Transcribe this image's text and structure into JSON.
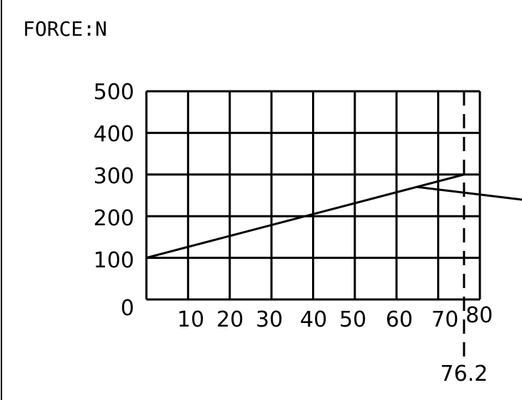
{
  "chart_data": {
    "type": "line",
    "title": "FORCE:N",
    "xlabel": "",
    "ylabel": "",
    "xlim": [
      0,
      80
    ],
    "ylim": [
      0,
      500
    ],
    "grid": true,
    "y_ticks": [
      "0",
      "100",
      "200",
      "300",
      "400",
      "500"
    ],
    "x_ticks": [
      "10",
      "20",
      "30",
      "40",
      "50",
      "60",
      "70",
      "80"
    ],
    "series": [
      {
        "values": [
          {
            "x": 0,
            "y": 100
          },
          {
            "x": 76.2,
            "y": 300
          }
        ]
      }
    ],
    "marker": {
      "x": 76.2,
      "label": "76.2"
    },
    "annotation": {
      "from": {
        "x": 65,
        "y": 270
      },
      "direction": "right-down"
    }
  }
}
